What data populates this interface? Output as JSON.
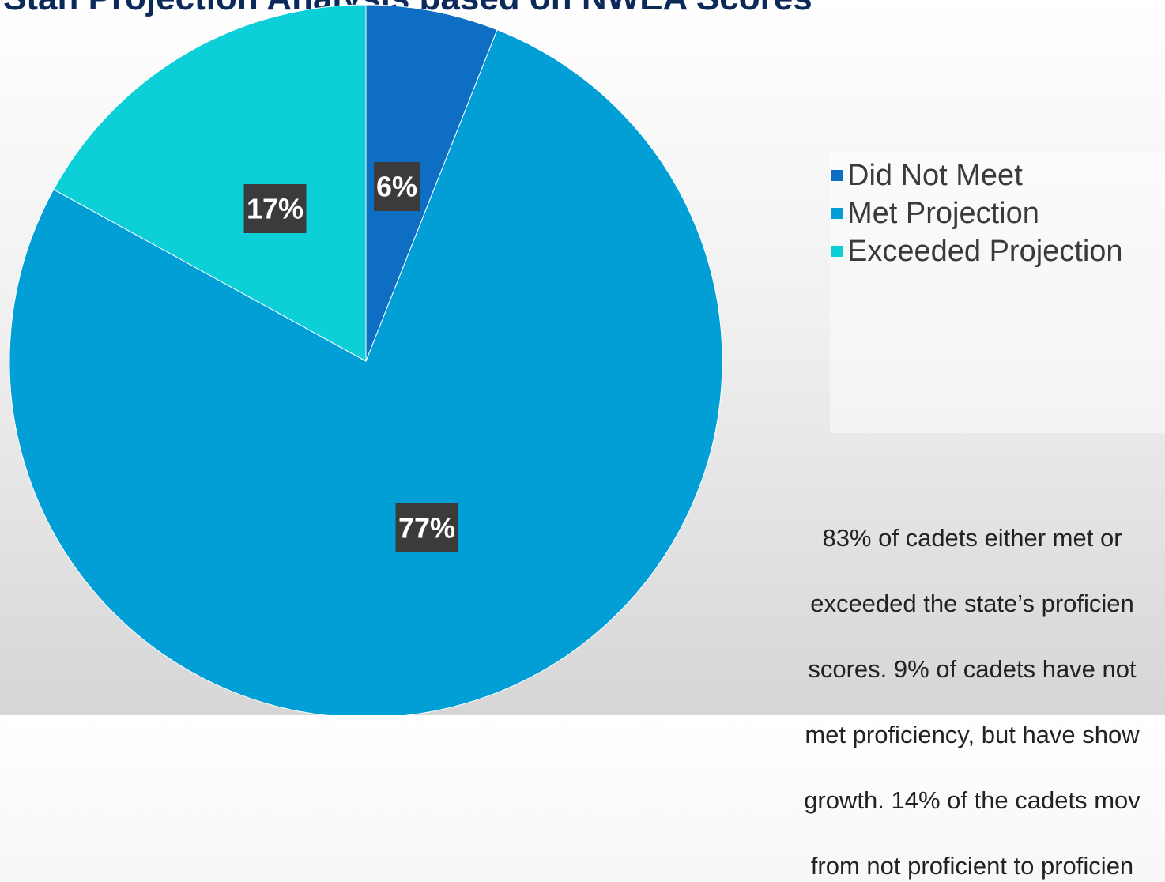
{
  "chart_data": {
    "type": "pie",
    "title": "Stan Projection Analysis based on NWEA Scores",
    "slices": [
      {
        "label": "Did Not Meet",
        "value": 6,
        "display": "6%",
        "color": "#0e6ec4"
      },
      {
        "label": "Met Projection",
        "value": 77,
        "display": "77%",
        "color": "#029ed6"
      },
      {
        "label": "Exceeded Projection",
        "value": 17,
        "display": "17%",
        "color": "#0dcfd8"
      }
    ],
    "legend_placement": "right",
    "data_label_background": "#3b3b3b"
  },
  "note": {
    "lines": [
      "83% of cadets either met or",
      "exceeded the state’s proficien",
      "scores. 9% of cadets have not",
      "met proficiency, but have show",
      "growth. 14% of the cadets mov",
      "from not proficient to proficien"
    ]
  }
}
